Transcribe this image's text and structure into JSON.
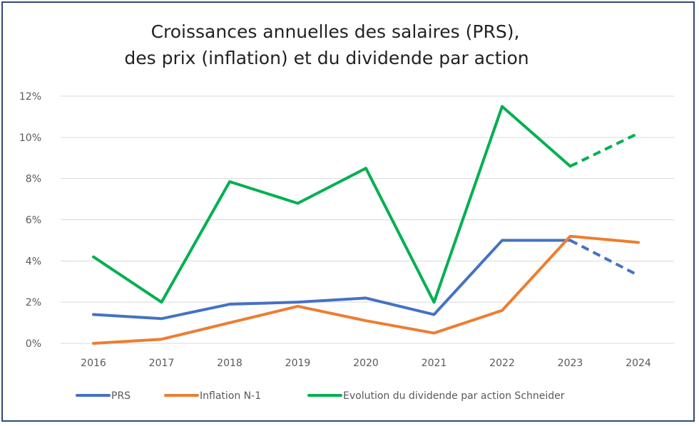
{
  "chart_data": {
    "type": "line",
    "title": [
      "Croissances annuelles des salaires (PRS),",
      "des prix (inflation) et du dividende par action"
    ],
    "xlabel": "",
    "ylabel": "",
    "categories": [
      "2016",
      "2017",
      "2018",
      "2019",
      "2020",
      "2021",
      "2022",
      "2023",
      "2024"
    ],
    "ylim": [
      0,
      12
    ],
    "yticks": [
      "0%",
      "2%",
      "4%",
      "6%",
      "8%",
      "10%",
      "12%"
    ],
    "grid": true,
    "legend_position": "bottom",
    "series": [
      {
        "name": "PRS",
        "color": "#4472c4",
        "values": [
          1.4,
          1.2,
          1.9,
          2.0,
          2.2,
          1.4,
          5.0,
          5.0,
          3.3
        ],
        "dashed_last_segment": true
      },
      {
        "name": "Inflation N-1",
        "color": "#ed7d31",
        "values": [
          0.0,
          0.2,
          1.0,
          1.8,
          1.1,
          0.5,
          1.6,
          5.2,
          4.9
        ],
        "dashed_last_segment": false
      },
      {
        "name": "Evolution du dividende par action Schneider",
        "color": "#00b050",
        "values": [
          4.2,
          2.0,
          7.85,
          6.8,
          8.5,
          2.0,
          11.5,
          8.6,
          10.2
        ],
        "dashed_last_segment": true
      }
    ]
  }
}
